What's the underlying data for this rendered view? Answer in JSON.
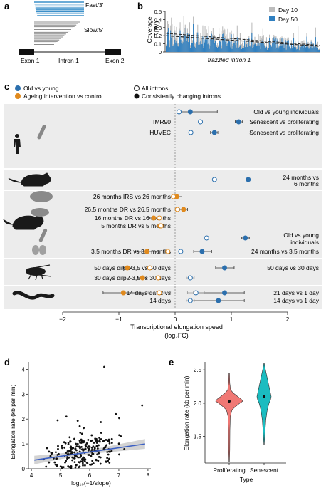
{
  "panel_labels": {
    "a": "a",
    "b": "b",
    "c": "c",
    "d": "d",
    "e": "e"
  },
  "colors": {
    "fast_blue": "#3a8fc9",
    "slow_grey": "#8c8c8c",
    "old_vs_young": "#2b6fad",
    "ageing": "#e08a1e",
    "coverage_day10": "#bdbdbd",
    "coverage_day50": "#2f7fc0",
    "band_grey": "#ececec",
    "violin_prolif": "#f07874",
    "violin_senes": "#1bbcc0",
    "trend_blue": "#3b5fc4",
    "ci_grey": "#c8c8c8"
  },
  "panel_a": {
    "fast_label": "Fast/3′",
    "slow_label": "Slow/5′",
    "exon1_label": "Exon 1",
    "intron1_label": "Intron 1",
    "exon2_label": "Exon 2",
    "fast_read_count": 8,
    "slow_read_count": 16
  },
  "panel_b": {
    "ylabel": "Coverage\n(RPM)",
    "xlabel": "frazzled intron 1",
    "y_ticks": [
      "0",
      "0.1",
      "0.2",
      "0.3",
      "0.4",
      "0.5"
    ],
    "legend": [
      {
        "label": "Day 10",
        "color": "#bdbdbd"
      },
      {
        "label": "Day 50",
        "color": "#2f7fc0"
      }
    ],
    "ylim": [
      0,
      0.5
    ],
    "trend_day10": [
      0.23,
      0.08
    ],
    "trend_day50": [
      0.2,
      0.07
    ]
  },
  "panel_c": {
    "legend": [
      {
        "label": "Old vs young",
        "kind": "filled",
        "color": "#2b6fad"
      },
      {
        "label": "Ageing intervention vs control",
        "kind": "filled",
        "color": "#e08a1e"
      },
      {
        "label": "All introns",
        "kind": "open",
        "color": "#222222"
      },
      {
        "label": "Consistently changing introns",
        "kind": "filled",
        "color": "#111111"
      }
    ],
    "xlabel": "Transcriptional elongation speed",
    "xlabel_unit": "(log₂FC)",
    "x_ticks": [
      "−2",
      "−1",
      "0",
      "1",
      "2"
    ],
    "x_tick_values": [
      -2,
      -1,
      0,
      1,
      2
    ],
    "xlim": [
      -2,
      2
    ],
    "left_labels": [
      {
        "text": "IMR90",
        "row": "r2"
      },
      {
        "text": "HUVEC",
        "row": "r3"
      },
      {
        "text": "26 months IRS vs 26 months",
        "row": "r5"
      },
      {
        "text": "26.5 months DR vs 26.5 months",
        "row": "r6"
      },
      {
        "text": "16 months DR vs 16 months",
        "row": "r7"
      },
      {
        "text": "5 months DR vs 5 months",
        "row": "r8"
      },
      {
        "text": "3.5 months DR vs 3.5 months",
        "row": "r10"
      },
      {
        "text": "50 days dilp2-3,5 vs 50 days",
        "row": "r11"
      },
      {
        "text": "30 days dilp2-3,5 vs 30 days",
        "row": "r12"
      },
      {
        "text": "14 days daf-2 vs",
        "row": "r13"
      },
      {
        "text": "14 days",
        "row": "r14"
      }
    ],
    "right_labels": [
      {
        "text": "Old vs young individuals",
        "row": "r1"
      },
      {
        "text": "Senescent vs proliferating",
        "row": "r2"
      },
      {
        "text": "Senescent vs proliferating",
        "row": "r3"
      },
      {
        "text": "24 months vs",
        "row": "r4a"
      },
      {
        "text": "6 months",
        "row": "r4b"
      },
      {
        "text": "Old vs young",
        "row": "r9a"
      },
      {
        "text": "individuals",
        "row": "r9b"
      },
      {
        "text": "24 months vs 3.5 months",
        "row": "r10"
      },
      {
        "text": "50 days vs 30 days",
        "row": "r11"
      },
      {
        "text": "21 days vs 1 day",
        "row": "r13"
      },
      {
        "text": "14 days vs 1 day",
        "row": "r14"
      }
    ],
    "points": [
      {
        "row": "r1",
        "x": 0.27,
        "lo": 0.05,
        "hi": 0.75,
        "color": "#2b6fad",
        "filled": true
      },
      {
        "row": "r1",
        "x": 0.07,
        "lo": 0.07,
        "hi": 0.07,
        "color": "#2b6fad",
        "filled": false
      },
      {
        "row": "r2",
        "x": 1.13,
        "lo": 1.07,
        "hi": 1.2,
        "color": "#2b6fad",
        "filled": true
      },
      {
        "row": "r2",
        "x": 0.45,
        "lo": 0.43,
        "hi": 0.47,
        "color": "#2b6fad",
        "filled": false
      },
      {
        "row": "r3",
        "x": 0.7,
        "lo": 0.63,
        "hi": 0.76,
        "color": "#2b6fad",
        "filled": true
      },
      {
        "row": "r3",
        "x": 0.28,
        "lo": 0.26,
        "hi": 0.3,
        "color": "#2b6fad",
        "filled": false
      },
      {
        "row": "r4",
        "x": 1.3,
        "lo": 1.3,
        "hi": 1.3,
        "color": "#2b6fad",
        "filled": true
      },
      {
        "row": "r4",
        "x": 0.7,
        "lo": 0.7,
        "hi": 0.7,
        "color": "#2b6fad",
        "filled": false
      },
      {
        "row": "r5",
        "x": 0.03,
        "lo": -0.05,
        "hi": 0.12,
        "color": "#e08a1e",
        "filled": true
      },
      {
        "row": "r5",
        "x": -0.03,
        "lo": -0.05,
        "hi": 0.0,
        "color": "#e08a1e",
        "filled": false
      },
      {
        "row": "r6",
        "x": 0.15,
        "lo": 0.08,
        "hi": 0.22,
        "color": "#e08a1e",
        "filled": true
      },
      {
        "row": "r6",
        "x": 0.04,
        "lo": 0.0,
        "hi": 0.08,
        "color": "#e08a1e",
        "filled": false
      },
      {
        "row": "r7",
        "x": -0.38,
        "lo": -0.45,
        "hi": -0.3,
        "color": "#e08a1e",
        "filled": true
      },
      {
        "row": "r7",
        "x": -0.28,
        "lo": -0.32,
        "hi": -0.24,
        "color": "#e08a1e",
        "filled": false
      },
      {
        "row": "r8",
        "x": -0.27,
        "lo": -0.32,
        "hi": -0.22,
        "color": "#e08a1e",
        "filled": true
      },
      {
        "row": "r8",
        "x": -0.25,
        "lo": -0.28,
        "hi": -0.22,
        "color": "#e08a1e",
        "filled": false
      },
      {
        "row": "r9",
        "x": 1.25,
        "lo": 1.18,
        "hi": 1.32,
        "color": "#2b6fad",
        "filled": true
      },
      {
        "row": "r9",
        "x": 0.56,
        "lo": 0.54,
        "hi": 0.58,
        "color": "#2b6fad",
        "filled": false
      },
      {
        "row": "r10",
        "x": 0.48,
        "lo": 0.33,
        "hi": 0.65,
        "color": "#2b6fad",
        "filled": true
      },
      {
        "row": "r10",
        "x": 0.1,
        "lo": 0.08,
        "hi": 0.12,
        "color": "#2b6fad",
        "filled": false
      },
      {
        "row": "r10",
        "x": -0.5,
        "lo": -0.7,
        "hi": -0.3,
        "color": "#e08a1e",
        "filled": true
      },
      {
        "row": "r10",
        "x": -0.13,
        "lo": -0.16,
        "hi": -0.1,
        "color": "#e08a1e",
        "filled": false
      },
      {
        "row": "r11",
        "x": 0.88,
        "lo": 0.72,
        "hi": 1.05,
        "color": "#2b6fad",
        "filled": true
      },
      {
        "row": "r11",
        "x": -0.85,
        "lo": -0.92,
        "hi": -0.78,
        "color": "#e08a1e",
        "filled": true
      },
      {
        "row": "r11",
        "x": -0.45,
        "lo": -0.49,
        "hi": -0.41,
        "color": "#e08a1e",
        "filled": false
      },
      {
        "row": "r12",
        "x": 0.27,
        "lo": 0.2,
        "hi": 0.34,
        "color": "#2b6fad",
        "filled": false
      },
      {
        "row": "r12",
        "x": -0.58,
        "lo": -0.66,
        "hi": -0.5,
        "color": "#e08a1e",
        "filled": true
      },
      {
        "row": "r12",
        "x": -0.3,
        "lo": -0.34,
        "hi": -0.26,
        "color": "#e08a1e",
        "filled": false
      },
      {
        "row": "r13",
        "x": 0.88,
        "lo": 0.33,
        "hi": 1.23,
        "color": "#2b6fad",
        "filled": true
      },
      {
        "row": "r13",
        "x": 0.37,
        "lo": 0.22,
        "hi": 0.52,
        "color": "#2b6fad",
        "filled": false
      },
      {
        "row": "r13",
        "x": -0.92,
        "lo": -1.28,
        "hi": -0.55,
        "color": "#e08a1e",
        "filled": true
      },
      {
        "row": "r13",
        "x": -0.28,
        "lo": -0.48,
        "hi": -0.08,
        "color": "#e08a1e",
        "filled": false
      },
      {
        "row": "r14",
        "x": 0.77,
        "lo": 0.3,
        "hi": 1.23,
        "color": "#2b6fad",
        "filled": true
      },
      {
        "row": "r14",
        "x": 0.27,
        "lo": 0.2,
        "hi": 0.34,
        "color": "#2b6fad",
        "filled": false
      }
    ]
  },
  "panel_d": {
    "ylabel": "Elongation rate (kb per min)",
    "xlabel": "log₁₀(−1/slope)",
    "x_ticks": [
      4,
      5,
      6,
      7,
      8
    ],
    "y_ticks": [
      0,
      1,
      2,
      3,
      4
    ],
    "xlim": [
      3.9,
      8.1
    ],
    "ylim": [
      0,
      4.3
    ],
    "trend": [
      [
        4.1,
        0.35
      ],
      [
        7.9,
        1.0
      ]
    ]
  },
  "panel_e": {
    "ylabel": "Elongation rate (kb per min)",
    "xlabel": "Type",
    "categories": [
      "Proliferating",
      "Senescent"
    ],
    "y_ticks": [
      1.5,
      2.0,
      2.5
    ],
    "ylim": [
      1.1,
      2.62
    ],
    "medians": [
      2.03,
      2.1
    ]
  },
  "chart_data": [
    {
      "type": "bar",
      "title": "",
      "xlabel": "frazzled intron 1",
      "ylabel": "Coverage (RPM)",
      "ylim": [
        0,
        0.5
      ],
      "series": [
        {
          "name": "Day 10"
        },
        {
          "name": "Day 50"
        }
      ]
    },
    {
      "type": "scatter",
      "title": "",
      "xlabel": "Transcriptional elongation speed (log2FC)",
      "xlim": [
        -2,
        2
      ]
    },
    {
      "type": "scatter",
      "title": "",
      "xlabel": "log10(−1/slope)",
      "ylabel": "Elongation rate (kb per min)",
      "xlim": [
        3.9,
        8.1
      ],
      "ylim": [
        0,
        4.3
      ]
    },
    {
      "type": "violin",
      "title": "",
      "xlabel": "Type",
      "ylabel": "Elongation rate (kb per min)",
      "categories": [
        "Proliferating",
        "Senescent"
      ],
      "medians": [
        2.03,
        2.1
      ]
    }
  ]
}
